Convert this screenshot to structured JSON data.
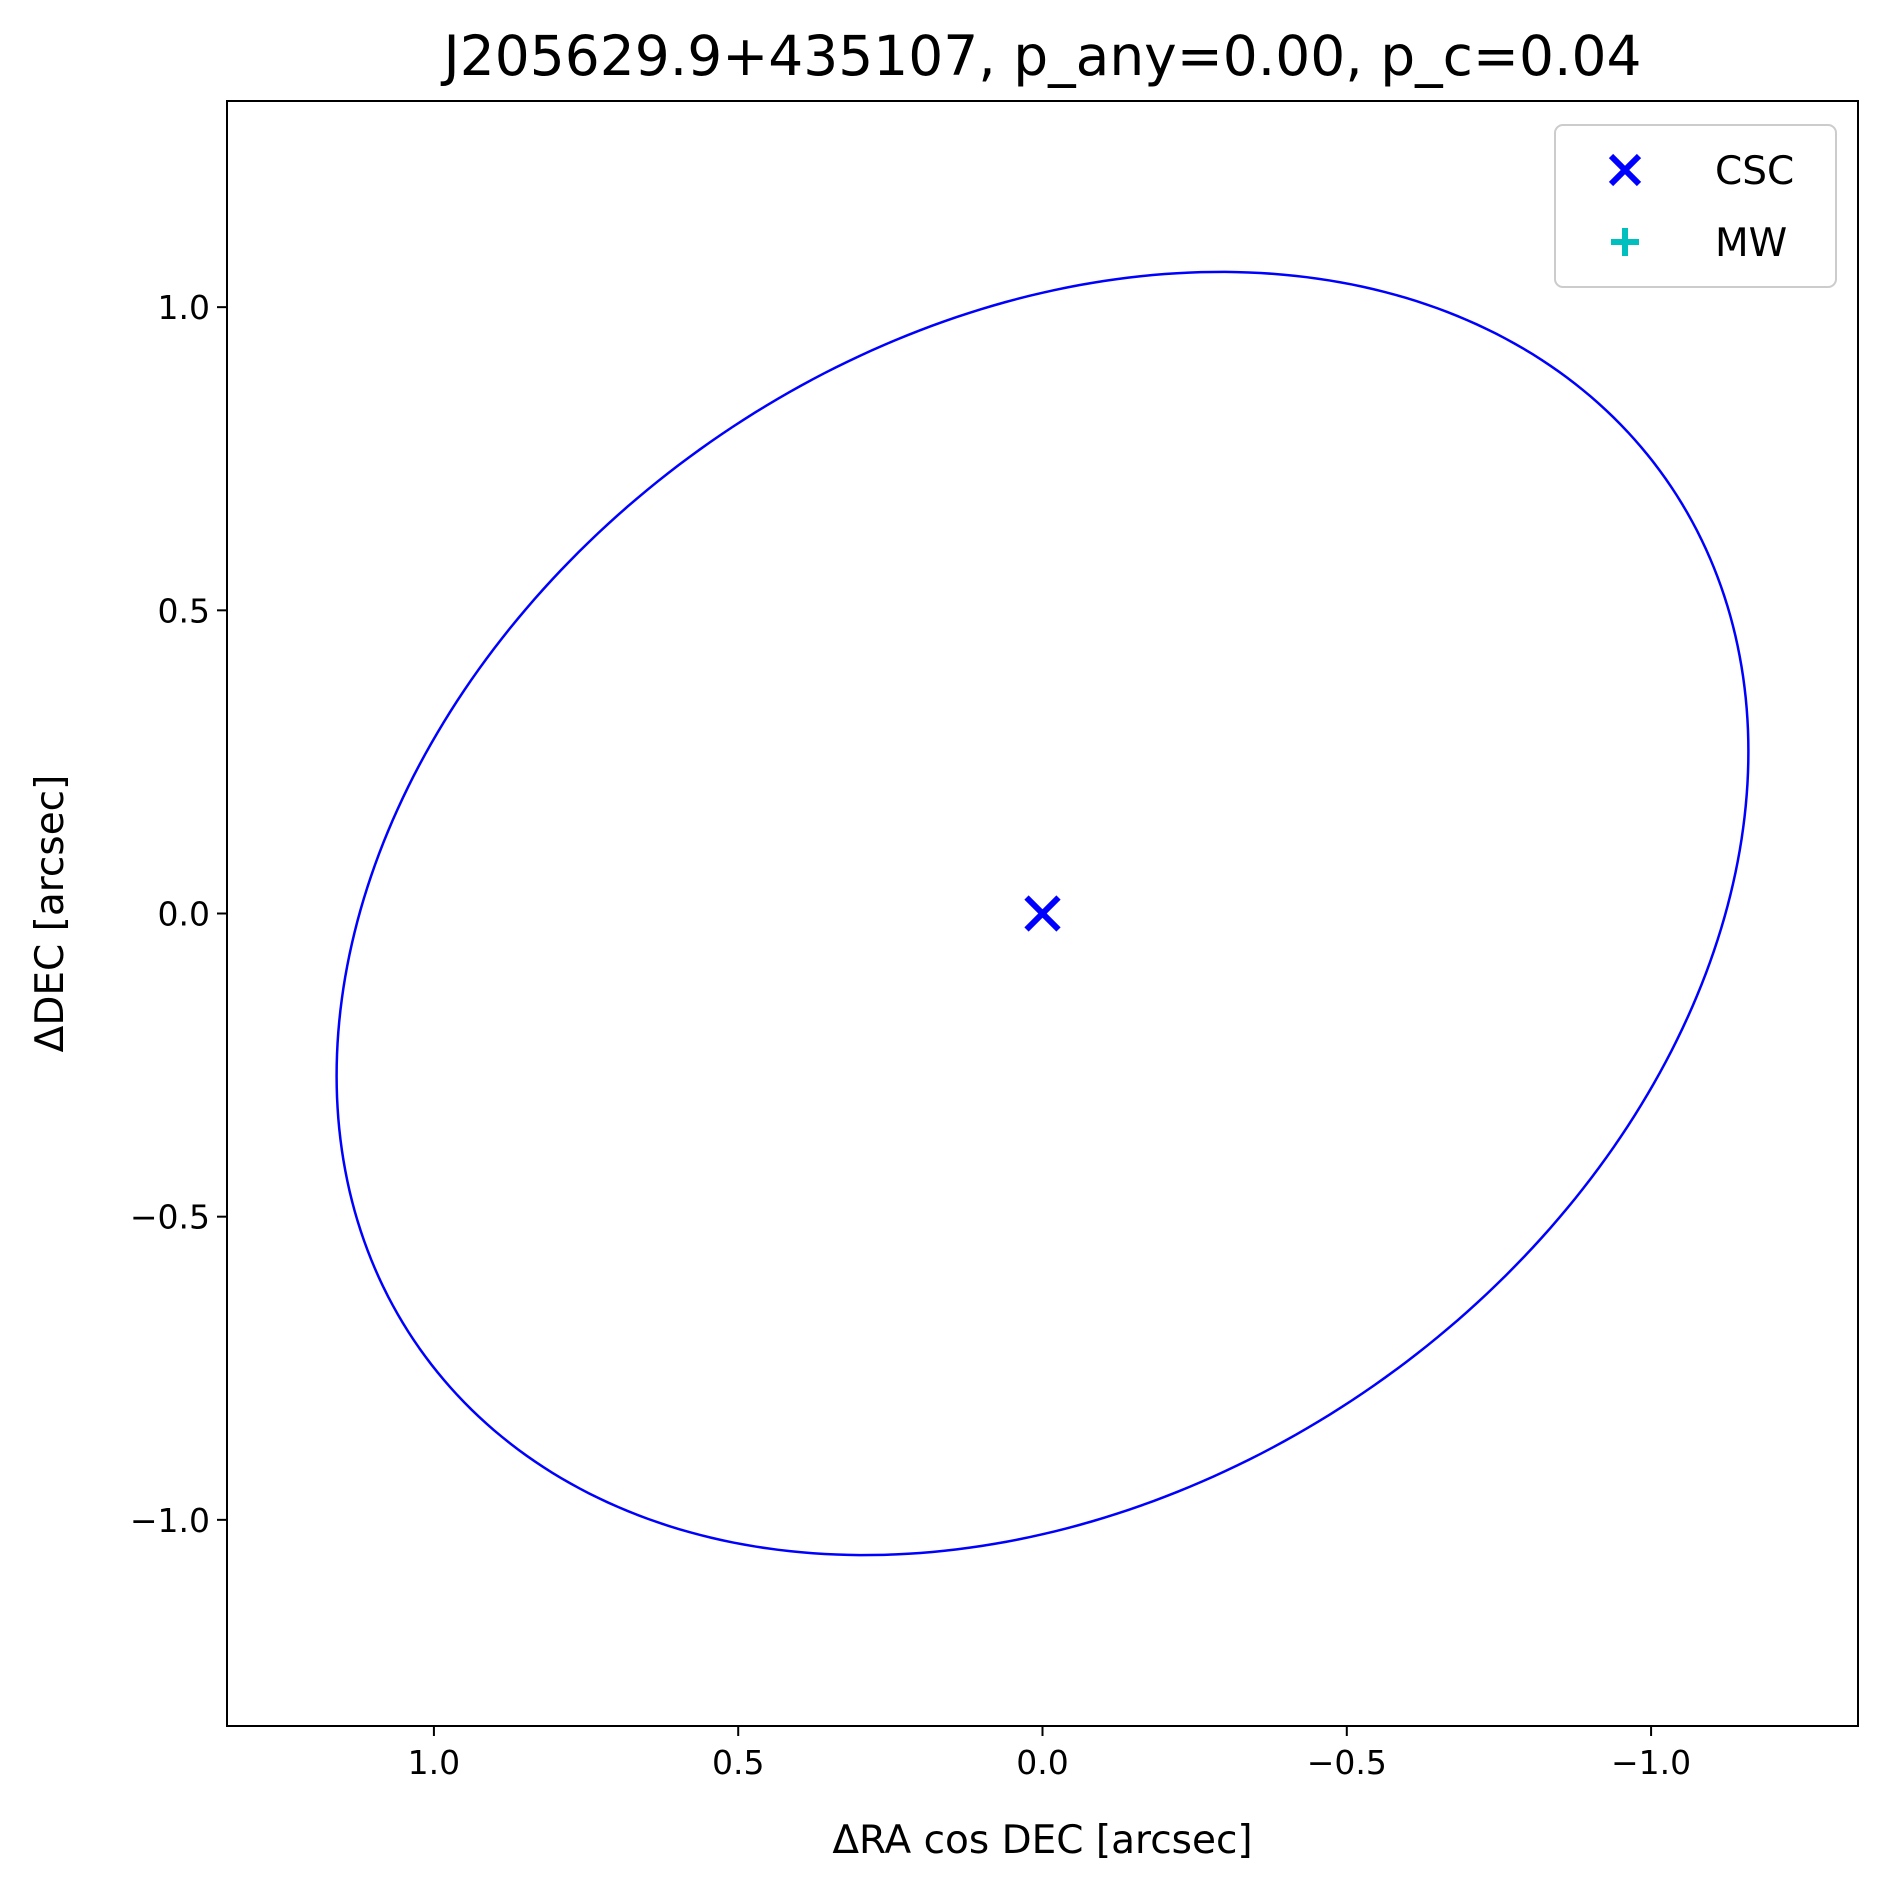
{
  "chart_data": {
    "type": "scatter",
    "title": "J205629.9+435107, p_any=0.00, p_c=0.04",
    "xlabel": "ΔRA cos DEC [arcsec]",
    "ylabel": "ΔDEC [arcsec]",
    "xlim": [
      1.34,
      -1.34
    ],
    "ylim": [
      -1.34,
      1.34
    ],
    "x_inverted": true,
    "x_ticks": [
      1.0,
      0.5,
      0.0,
      -0.5,
      -1.0
    ],
    "x_tick_labels": [
      "1.0",
      "0.5",
      "0.0",
      "−0.5",
      "−1.0"
    ],
    "y_ticks": [
      1.0,
      0.5,
      0.0,
      -0.5,
      -1.0
    ],
    "y_tick_labels": [
      "1.0",
      "0.5",
      "0.0",
      "−0.5",
      "−1.0"
    ],
    "grid": false,
    "legend_position": "top-right",
    "series": [
      {
        "name": "CSC",
        "marker": "x",
        "color": "#0000ff",
        "x": [
          0.0
        ],
        "y": [
          0.0
        ]
      },
      {
        "name": "MW",
        "marker": "+",
        "color": "#00bfbf",
        "x": [],
        "y": []
      }
    ],
    "ellipse": {
      "color": "#0000ff",
      "center": [
        0.0,
        0.0
      ],
      "semi_major": 1.25,
      "semi_minor": 0.95,
      "angle_deg": -35
    }
  }
}
